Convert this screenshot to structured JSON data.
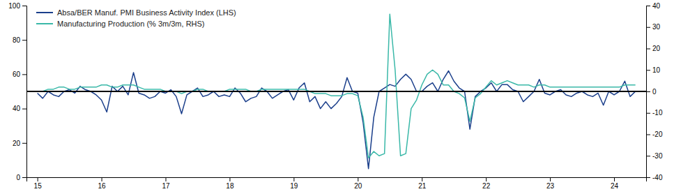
{
  "chart_data": {
    "type": "line",
    "x": [
      15.0,
      15.083,
      15.167,
      15.25,
      15.333,
      15.417,
      15.5,
      15.583,
      15.667,
      15.75,
      15.833,
      15.917,
      16.0,
      16.083,
      16.167,
      16.25,
      16.333,
      16.417,
      16.5,
      16.583,
      16.667,
      16.75,
      16.833,
      16.917,
      17.0,
      17.083,
      17.167,
      17.25,
      17.333,
      17.417,
      17.5,
      17.583,
      17.667,
      17.75,
      17.833,
      17.917,
      18.0,
      18.083,
      18.167,
      18.25,
      18.333,
      18.417,
      18.5,
      18.583,
      18.667,
      18.75,
      18.833,
      18.917,
      19.0,
      19.083,
      19.167,
      19.25,
      19.333,
      19.417,
      19.5,
      19.583,
      19.667,
      19.75,
      19.833,
      19.917,
      20.0,
      20.083,
      20.167,
      20.25,
      20.333,
      20.417,
      20.5,
      20.583,
      20.667,
      20.75,
      20.833,
      20.917,
      21.0,
      21.083,
      21.167,
      21.25,
      21.333,
      21.417,
      21.5,
      21.583,
      21.667,
      21.75,
      21.833,
      21.917,
      22.0,
      22.083,
      22.167,
      22.25,
      22.333,
      22.417,
      22.5,
      22.583,
      22.667,
      22.75,
      22.833,
      22.917,
      23.0,
      23.083,
      23.167,
      23.25,
      23.333,
      23.417,
      23.5,
      23.583,
      23.667,
      23.75,
      23.833,
      23.917,
      24.0,
      24.083,
      24.167,
      24.25,
      24.333
    ],
    "xlim": [
      14.83,
      24.5
    ],
    "xticks": [
      15,
      16,
      17,
      18,
      19,
      20,
      21,
      22,
      23,
      24
    ],
    "ylim": [
      0,
      100
    ],
    "yticks": [
      0,
      20,
      40,
      60,
      80,
      100
    ],
    "y2lim": [
      -40,
      40
    ],
    "y2ticks": [
      -40,
      -30,
      -20,
      -10,
      0,
      10,
      20,
      30,
      40
    ],
    "legend": "upper left",
    "series": [
      {
        "name": "Absa/BER Manuf. PMI Business Activity Index (LHS)",
        "color": "#1b3f8b",
        "values": [
          49,
          46,
          50,
          48,
          47,
          50,
          51,
          49,
          53,
          51,
          50,
          48,
          45,
          38,
          53,
          50,
          53,
          48,
          61,
          49,
          48,
          46,
          47,
          50,
          49,
          51,
          47,
          37,
          48,
          50,
          52,
          47,
          48,
          50,
          47,
          48,
          47,
          52,
          49,
          44,
          46,
          47,
          52,
          50,
          46,
          48,
          50,
          51,
          45,
          52,
          55,
          44,
          47,
          40,
          44,
          40,
          43,
          47,
          58,
          50,
          49,
          32,
          5,
          35,
          50,
          52,
          54,
          53,
          57,
          60,
          57,
          50,
          50,
          53,
          55,
          50,
          57,
          62,
          56,
          52,
          50,
          28,
          47,
          50,
          52,
          55,
          50,
          54,
          54,
          51,
          50,
          44,
          47,
          50,
          57,
          49,
          48,
          50,
          51,
          48,
          47,
          49,
          50,
          48,
          47,
          49,
          42,
          50,
          48,
          50,
          56,
          47,
          50
        ]
      },
      {
        "name": "Manufacturing Production (% 3m/3m, RHS)",
        "color": "#3ab8a8",
        "axis": "y2",
        "values": [
          0,
          0,
          1,
          1,
          2,
          2,
          1,
          1,
          2,
          2,
          2,
          2,
          3,
          3,
          2,
          2,
          3,
          3,
          3,
          2,
          1,
          1,
          1,
          1,
          0,
          0,
          0,
          -1,
          0,
          0,
          1,
          1,
          0,
          0,
          0,
          0,
          1,
          1,
          1,
          1,
          0,
          0,
          1,
          1,
          1,
          1,
          1,
          1,
          1,
          1,
          1,
          0,
          -1,
          -1,
          -1,
          -2,
          -2,
          -2,
          -1,
          -1,
          -2,
          -12,
          -31,
          -28,
          -30,
          -29,
          36,
          10,
          -30,
          -29,
          -8,
          -4,
          3,
          8,
          10,
          8,
          3,
          3,
          0,
          -1,
          -3,
          -14,
          -3,
          -1,
          2,
          5,
          3,
          4,
          5,
          4,
          3,
          3,
          3,
          2,
          3,
          3,
          2,
          2,
          2,
          2,
          2,
          2,
          2,
          2,
          2,
          2,
          2,
          2,
          2,
          2,
          3,
          3,
          3
        ]
      }
    ],
    "reference_lines": [
      {
        "value": 50,
        "color": "#000000"
      }
    ]
  }
}
